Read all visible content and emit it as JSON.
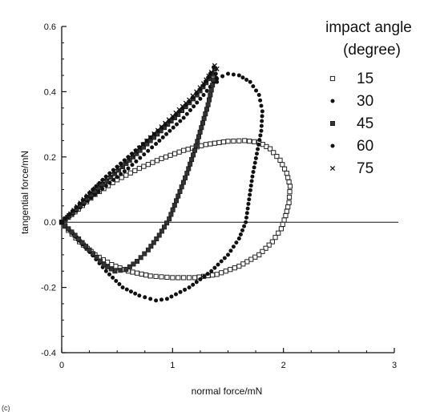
{
  "chart_data": {
    "type": "scatter",
    "xlabel": "normal force/mN",
    "ylabel": "tangential force/mN",
    "xlim": [
      0,
      3
    ],
    "ylim": [
      -0.4,
      0.6
    ],
    "x_ticks": [
      0,
      1,
      2,
      3
    ],
    "y_ticks": [
      -0.4,
      -0.2,
      0.0,
      0.2,
      0.4,
      0.6
    ],
    "x_tick_labels": [
      "0",
      "1",
      "2",
      "3"
    ],
    "y_tick_labels": [
      "-0.4",
      "-0.2",
      "0.0",
      "0.2",
      "0.4",
      "0.6"
    ],
    "reference_line_y": 0,
    "legend": {
      "title_line1": "impact angle",
      "title_line2": "(degree)",
      "placement": "top-right"
    },
    "series": [
      {
        "name": "15",
        "marker": "open-square",
        "points": [
          [
            0,
            0
          ],
          [
            0.06,
            0.015
          ],
          [
            0.15,
            0.04
          ],
          [
            0.3,
            0.085
          ],
          [
            0.5,
            0.13
          ],
          [
            0.7,
            0.165
          ],
          [
            0.9,
            0.195
          ],
          [
            1.1,
            0.22
          ],
          [
            1.3,
            0.238
          ],
          [
            1.5,
            0.248
          ],
          [
            1.65,
            0.25
          ],
          [
            1.78,
            0.245
          ],
          [
            1.88,
            0.225
          ],
          [
            1.97,
            0.19
          ],
          [
            2.03,
            0.15
          ],
          [
            2.06,
            0.11
          ],
          [
            2.05,
            0.06
          ],
          [
            2.02,
            0.02
          ],
          [
            1.98,
            -0.02
          ],
          [
            1.9,
            -0.06
          ],
          [
            1.78,
            -0.1
          ],
          [
            1.6,
            -0.135
          ],
          [
            1.4,
            -0.16
          ],
          [
            1.2,
            -0.17
          ],
          [
            1.0,
            -0.17
          ],
          [
            0.8,
            -0.165
          ],
          [
            0.6,
            -0.15
          ],
          [
            0.45,
            -0.13
          ],
          [
            0.3,
            -0.1
          ],
          [
            0.16,
            -0.06
          ],
          [
            0.06,
            -0.025
          ],
          [
            0,
            0
          ]
        ]
      },
      {
        "name": "30",
        "marker": "filled-circle",
        "points": [
          [
            0,
            0
          ],
          [
            0.1,
            0.025
          ],
          [
            0.3,
            0.085
          ],
          [
            0.6,
            0.165
          ],
          [
            0.85,
            0.24
          ],
          [
            1.1,
            0.32
          ],
          [
            1.28,
            0.39
          ],
          [
            1.4,
            0.44
          ],
          [
            1.5,
            0.455
          ],
          [
            1.6,
            0.45
          ],
          [
            1.7,
            0.43
          ],
          [
            1.78,
            0.39
          ],
          [
            1.81,
            0.34
          ],
          [
            1.8,
            0.28
          ],
          [
            1.76,
            0.21
          ],
          [
            1.72,
            0.14
          ],
          [
            1.69,
            0.07
          ],
          [
            1.66,
            0.0
          ],
          [
            1.6,
            -0.05
          ],
          [
            1.5,
            -0.1
          ],
          [
            1.35,
            -0.15
          ],
          [
            1.15,
            -0.2
          ],
          [
            0.95,
            -0.235
          ],
          [
            0.85,
            -0.24
          ],
          [
            0.7,
            -0.225
          ],
          [
            0.55,
            -0.2
          ],
          [
            0.4,
            -0.15
          ],
          [
            0.25,
            -0.09
          ],
          [
            0.1,
            -0.035
          ],
          [
            0,
            0
          ]
        ]
      },
      {
        "name": "45",
        "marker": "filled-square",
        "points": [
          [
            0,
            0
          ],
          [
            0.1,
            0.03
          ],
          [
            0.3,
            0.095
          ],
          [
            0.55,
            0.17
          ],
          [
            0.8,
            0.25
          ],
          [
            1.05,
            0.33
          ],
          [
            1.22,
            0.39
          ],
          [
            1.33,
            0.44
          ],
          [
            1.38,
            0.47
          ],
          [
            1.36,
            0.42
          ],
          [
            1.32,
            0.36
          ],
          [
            1.26,
            0.29
          ],
          [
            1.2,
            0.22
          ],
          [
            1.13,
            0.15
          ],
          [
            1.05,
            0.08
          ],
          [
            0.97,
            0.01
          ],
          [
            0.88,
            -0.04
          ],
          [
            0.78,
            -0.085
          ],
          [
            0.68,
            -0.12
          ],
          [
            0.58,
            -0.145
          ],
          [
            0.48,
            -0.15
          ],
          [
            0.38,
            -0.13
          ],
          [
            0.25,
            -0.085
          ],
          [
            0.12,
            -0.04
          ],
          [
            0,
            0
          ]
        ]
      },
      {
        "name": "60",
        "marker": "filled-circle",
        "points": [
          [
            0,
            0
          ],
          [
            0.1,
            0.035
          ],
          [
            0.25,
            0.09
          ],
          [
            0.4,
            0.14
          ],
          [
            0.6,
            0.2
          ],
          [
            0.8,
            0.26
          ],
          [
            1.0,
            0.32
          ],
          [
            1.15,
            0.37
          ],
          [
            1.28,
            0.42
          ],
          [
            1.34,
            0.455
          ],
          [
            1.37,
            0.475
          ],
          [
            1.39,
            0.455
          ],
          [
            1.4,
            0.43
          ]
        ]
      },
      {
        "name": "75",
        "marker": "cross",
        "points": [
          [
            0,
            0
          ],
          [
            0.05,
            0.015
          ],
          [
            0.2,
            0.07
          ],
          [
            0.4,
            0.135
          ],
          [
            0.6,
            0.195
          ],
          [
            0.8,
            0.26
          ],
          [
            1.0,
            0.325
          ],
          [
            1.15,
            0.375
          ],
          [
            1.28,
            0.425
          ],
          [
            1.35,
            0.46
          ],
          [
            1.38,
            0.48
          ],
          [
            1.4,
            0.47
          ]
        ]
      }
    ]
  },
  "fragment_label": "(c)"
}
